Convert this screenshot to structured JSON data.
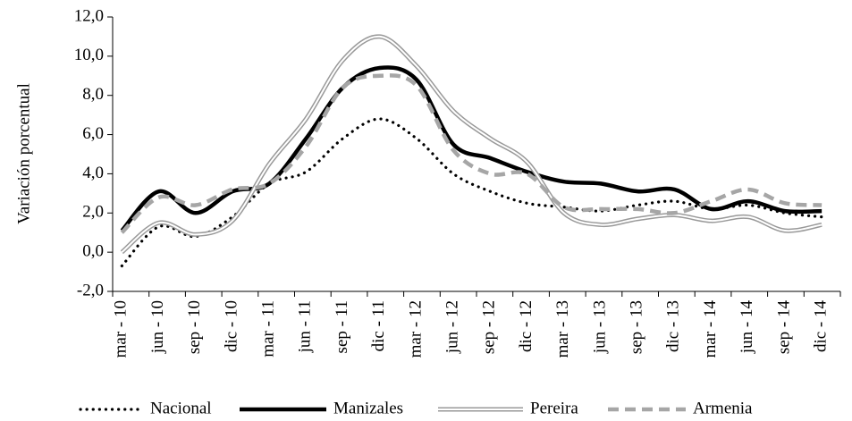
{
  "chart_data": {
    "type": "line",
    "y_label": "Variación  porcentual",
    "categories": [
      "mar - 10",
      "jun - 10",
      "sep - 10",
      "dic - 10",
      "mar - 11",
      "jun - 11",
      "sep - 11",
      "dic - 11",
      "mar - 12",
      "jun - 12",
      "sep - 12",
      "dic - 12",
      "mar - 13",
      "jun - 13",
      "sep - 13",
      "dic - 13",
      "mar - 14",
      "jun - 14",
      "sep - 14",
      "dic - 14"
    ],
    "series": [
      {
        "name": "Nacional",
        "color": "#000000",
        "style": "dotted",
        "values": [
          -0.7,
          1.3,
          0.8,
          1.8,
          3.5,
          4.1,
          5.8,
          6.8,
          5.8,
          4.0,
          3.1,
          2.5,
          2.3,
          2.1,
          2.4,
          2.6,
          2.2,
          2.4,
          2.0,
          1.8
        ]
      },
      {
        "name": "Manizales",
        "color": "#000000",
        "style": "solid",
        "values": [
          1.1,
          3.1,
          2.0,
          3.1,
          3.5,
          5.8,
          8.4,
          9.4,
          8.8,
          5.5,
          4.8,
          4.1,
          3.6,
          3.5,
          3.1,
          3.2,
          2.2,
          2.6,
          2.1,
          2.1
        ]
      },
      {
        "name": "Pereira",
        "color": "#999999",
        "style": "double",
        "values": [
          0.0,
          1.5,
          0.9,
          1.6,
          4.5,
          6.8,
          9.8,
          11.0,
          9.5,
          7.2,
          5.8,
          4.6,
          2.0,
          1.4,
          1.7,
          1.9,
          1.6,
          1.8,
          1.1,
          1.4
        ]
      },
      {
        "name": "Armenia",
        "color": "#a6a6a6",
        "style": "dashed",
        "values": [
          1.0,
          2.8,
          2.4,
          3.2,
          3.5,
          5.4,
          8.4,
          9.0,
          8.5,
          5.2,
          4.0,
          4.0,
          2.3,
          2.2,
          2.2,
          2.0,
          2.6,
          3.2,
          2.5,
          2.4
        ]
      }
    ],
    "ylim": [
      -2,
      12
    ],
    "yticks": [
      {
        "value": -2,
        "label": "-2,0"
      },
      {
        "value": 0,
        "label": "0,0"
      },
      {
        "value": 2,
        "label": "2,0"
      },
      {
        "value": 4,
        "label": "4,0"
      },
      {
        "value": 6,
        "label": "6,0"
      },
      {
        "value": 8,
        "label": "8,0"
      },
      {
        "value": 10,
        "label": "10,0"
      },
      {
        "value": 12,
        "label": "12,0"
      }
    ],
    "grid": false,
    "legend": "bottom"
  }
}
